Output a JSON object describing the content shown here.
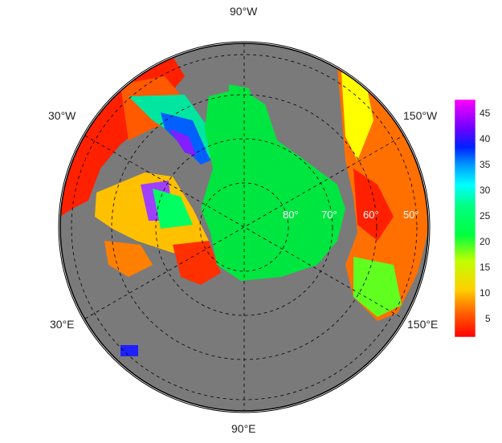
{
  "map": {
    "projection": "north-polar-stereographic",
    "longitude_labels": {
      "top": "90°W",
      "bottom": "90°E",
      "upper_left": "30°W",
      "lower_left": "30°E",
      "upper_right": "150°W",
      "lower_right": "150°E"
    },
    "latitude_labels": [
      "80°",
      "70°",
      "60°",
      "50°"
    ],
    "colors": {
      "land": "#7a7a7a",
      "ocean_center": "#00e640",
      "coastline": "#000000",
      "grid": "#000000"
    }
  },
  "colorbar": {
    "ticks": [
      "45",
      "40",
      "35",
      "30",
      "25",
      "20",
      "15",
      "10",
      "5"
    ],
    "range": [
      1,
      47
    ],
    "colors": [
      "#ff0000",
      "#ff8000",
      "#ffff00",
      "#00ff40",
      "#00ffff",
      "#0040ff",
      "#8000ff",
      "#ff00ff"
    ]
  }
}
